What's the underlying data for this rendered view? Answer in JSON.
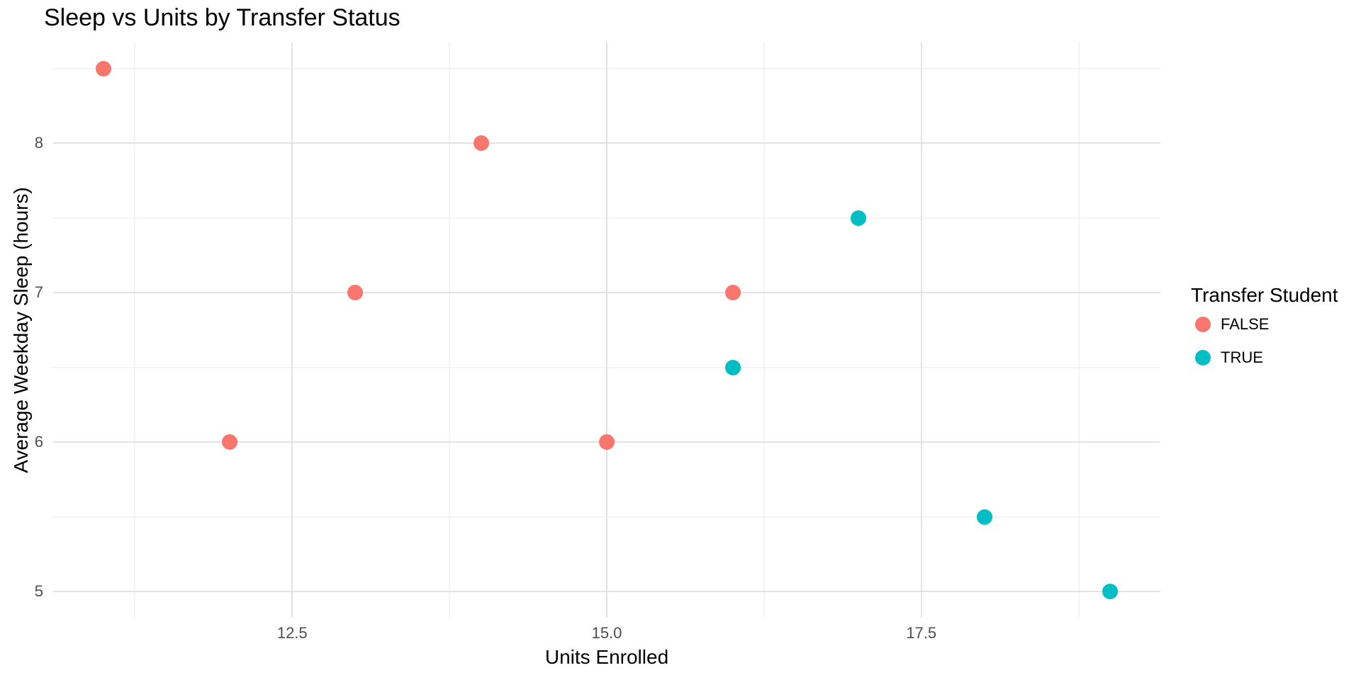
{
  "title": "Sleep vs Units by Transfer Status",
  "colors": {
    "false_series": "#F8766D",
    "true_series": "#00BFC4",
    "grid_major": "#e2e2e2",
    "grid_minor": "#e9e9e9",
    "tick_label": "#4d4d4d",
    "text": "#000000",
    "background": "#ffffff"
  },
  "chart_data": {
    "type": "scatter",
    "title": "Sleep vs Units by Transfer Status",
    "xlabel": "Units Enrolled",
    "ylabel": "Average Weekday Sleep (hours)",
    "xlim": [
      10.6,
      19.4
    ],
    "ylim": [
      4.825,
      8.675
    ],
    "grid": true,
    "x_ticks": [
      {
        "value": 12.5,
        "label": "12.5"
      },
      {
        "value": 15.0,
        "label": "15.0"
      },
      {
        "value": 17.5,
        "label": "17.5"
      }
    ],
    "x_minor_ticks": [
      11.25,
      13.75,
      16.25,
      18.75
    ],
    "y_ticks": [
      {
        "value": 5,
        "label": "5"
      },
      {
        "value": 6,
        "label": "6"
      },
      {
        "value": 7,
        "label": "7"
      },
      {
        "value": 8,
        "label": "8"
      }
    ],
    "y_minor_ticks": [
      5.5,
      6.5,
      7.5,
      8.5
    ],
    "legend": {
      "title": "Transfer Student",
      "position": "right"
    },
    "series": [
      {
        "name": "FALSE",
        "color": "#F8766D",
        "points": [
          [
            11,
            8.5
          ],
          [
            12,
            6.0
          ],
          [
            13,
            7.0
          ],
          [
            14,
            8.0
          ],
          [
            15,
            6.0
          ],
          [
            16,
            7.0
          ]
        ]
      },
      {
        "name": "TRUE",
        "color": "#00BFC4",
        "points": [
          [
            16,
            6.5
          ],
          [
            17,
            7.5
          ],
          [
            18,
            5.5
          ],
          [
            19,
            5.0
          ]
        ]
      }
    ]
  }
}
